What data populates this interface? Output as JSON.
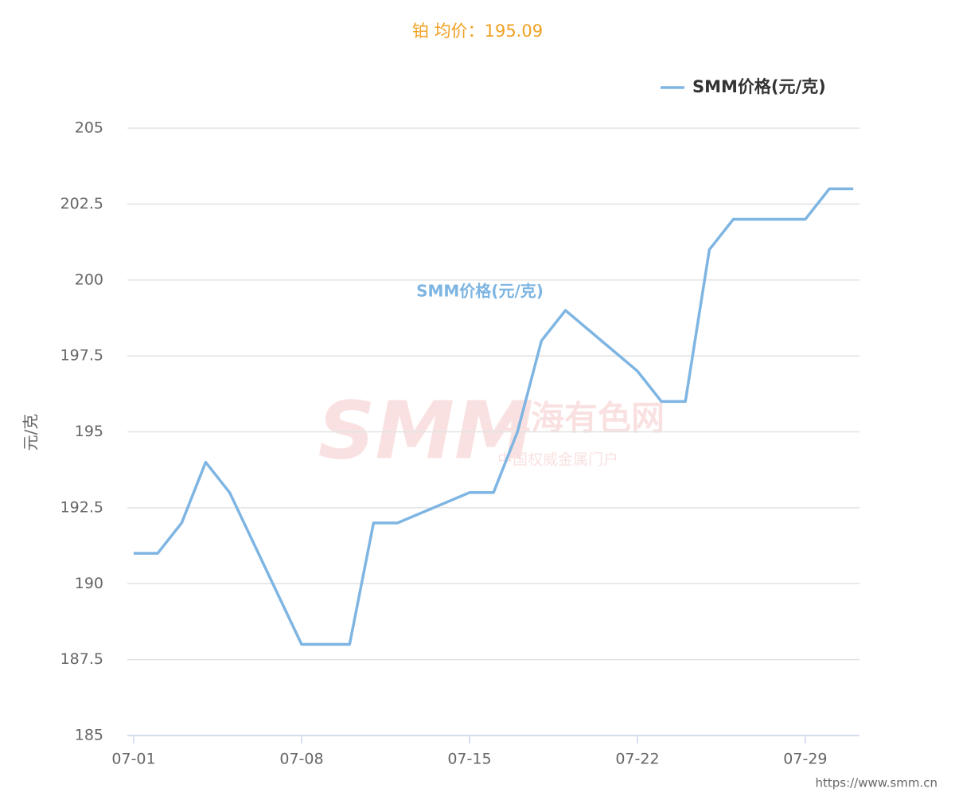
{
  "chart_data": {
    "type": "line",
    "title": "铂 均价：195.09",
    "y_label": "元/克",
    "x": [
      "07-01",
      "07-02",
      "07-03",
      "07-04",
      "07-05",
      "07-08",
      "07-09",
      "07-10",
      "07-11",
      "07-12",
      "07-15",
      "07-16",
      "07-17",
      "07-18",
      "07-19",
      "07-22",
      "07-23",
      "07-24",
      "07-25",
      "07-26",
      "07-29",
      "07-30",
      "07-31"
    ],
    "series": [
      {
        "name": "SMM价格(元/克)",
        "color": "#7eb5e2",
        "values": [
          191,
          191,
          192,
          194,
          193,
          188,
          188,
          188,
          192,
          192,
          193,
          193,
          195,
          198,
          199,
          197,
          196,
          196,
          201,
          202,
          202,
          203,
          203
        ]
      }
    ],
    "ylim": [
      185,
      205
    ],
    "yticks": [
      185,
      187.5,
      190,
      192.5,
      195,
      197.5,
      200,
      202.5,
      205
    ],
    "xticks": [
      "07-01",
      "07-08",
      "07-15",
      "07-22",
      "07-29"
    ],
    "grid": true,
    "legend": "top-right",
    "watermark": {
      "logo": "SMM",
      "name": "上海有色网",
      "slogan": "中国权威金属门户"
    },
    "source": "https://www.smm.cn"
  }
}
